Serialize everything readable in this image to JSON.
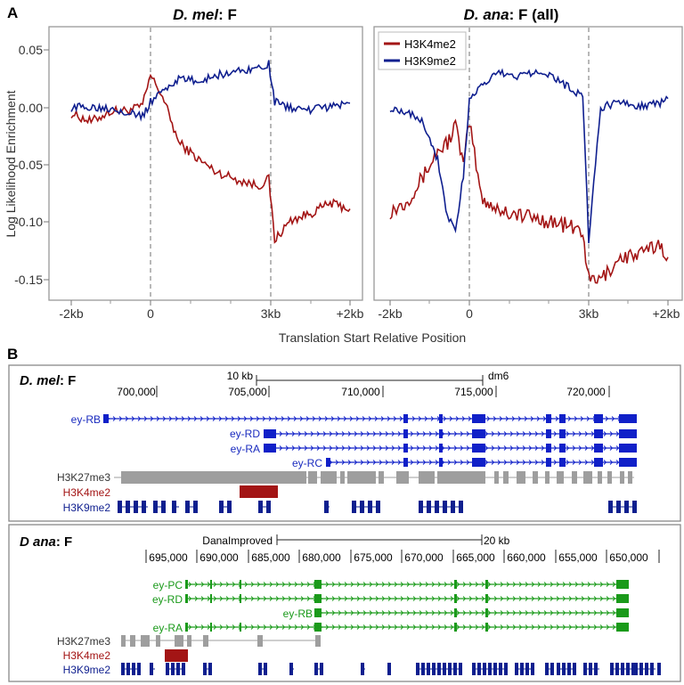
{
  "panel_a": {
    "label": "A",
    "left_title_italic": "D. mel",
    "left_title_rest": ": F",
    "right_title_italic": "D. ana",
    "right_title_rest": ": F (all)",
    "ylabel": "Log Likelihood Enrichment",
    "xlabel": "Translation Start Relative Position"
  },
  "panel_b": {
    "label": "B",
    "top": {
      "title_italic": "D. mel",
      "title_rest": ": F",
      "scale_label": "10 kb",
      "assembly": "dm6",
      "coords": [
        "700,000",
        "705,000",
        "710,000",
        "715,000",
        "720,000"
      ],
      "transcripts": [
        "ey-RB",
        "ey-RD",
        "ey-RA",
        "ey-RC"
      ],
      "tracks": [
        "H3K27me3",
        "H3K4me2",
        "H3K9me2"
      ]
    },
    "bottom": {
      "title": "D ana",
      "title_rest": ": F",
      "assembly": "DanaImproved",
      "scale_label": "20 kb",
      "coords": [
        "695,000",
        "690,000",
        "685,000",
        "680,000",
        "675,000",
        "670,000",
        "665,000",
        "660,000",
        "655,000",
        "650,000"
      ],
      "transcripts": [
        "ey-PC",
        "ey-RD",
        "ey-RB",
        "ey-RA"
      ],
      "tracks": [
        "H3K27me3",
        "H3K4me2",
        "H3K9me2"
      ]
    }
  },
  "colors": {
    "h3k4me2": "#a31515",
    "h3k9me2": "#0f1f8f",
    "h3k27me3": "#9e9e9e",
    "dmel_gene": "#1020c8",
    "dana_gene": "#1a9a1a",
    "frame": "#999999"
  },
  "chart_data": [
    {
      "type": "line",
      "title": "D. mel: F",
      "xlabel": "Translation Start Relative Position",
      "ylabel": "Log Likelihood Enrichment",
      "x_ticks": [
        "-2kb",
        "0",
        "3kb",
        "+2kb"
      ],
      "y_ticks": [
        0.05,
        0.0,
        -0.05,
        -0.1,
        -0.15
      ],
      "ylim": [
        -0.165,
        0.068
      ],
      "grid": false,
      "legend": "none",
      "vlines_at": [
        "0",
        "3kb"
      ],
      "x_positions": [
        -2,
        -1.5,
        -1,
        -0.5,
        -0.2,
        0,
        0.3,
        0.7,
        1.2,
        1.6,
        2.2,
        2.7,
        2.95,
        3.1,
        3.5,
        4,
        4.5,
        5
      ],
      "series": [
        {
          "name": "H3K4me2",
          "values": [
            -0.005,
            -0.012,
            -0.003,
            -0.002,
            0.002,
            0.028,
            0.01,
            -0.03,
            -0.045,
            -0.055,
            -0.063,
            -0.068,
            -0.062,
            -0.115,
            -0.098,
            -0.092,
            -0.083,
            -0.088
          ]
        },
        {
          "name": "H3K9me2",
          "values": [
            0.0,
            0.001,
            0.0,
            -0.004,
            -0.008,
            0.005,
            0.015,
            0.025,
            0.023,
            0.028,
            0.032,
            0.035,
            0.038,
            0.005,
            0.0,
            -0.002,
            0.001,
            0.004
          ]
        }
      ]
    },
    {
      "type": "line",
      "title": "D. ana: F (all)",
      "xlabel": "Translation Start Relative Position",
      "ylabel": "Log Likelihood Enrichment",
      "x_ticks": [
        "-2kb",
        "0",
        "3kb",
        "+2kb"
      ],
      "y_ticks": [
        0.05,
        0.0,
        -0.05,
        -0.1,
        -0.15
      ],
      "ylim": [
        -0.165,
        0.068
      ],
      "grid": false,
      "legend": "top-left",
      "legend_entries": [
        "H3K4me2",
        "H3K9me2"
      ],
      "vlines_at": [
        "0",
        "3kb"
      ],
      "x_positions": [
        -2,
        -1.6,
        -1.2,
        -0.8,
        -0.55,
        -0.35,
        -0.15,
        0,
        0.3,
        0.7,
        1.2,
        1.8,
        2.4,
        2.85,
        3.0,
        3.3,
        3.8,
        4.3,
        4.8,
        5
      ],
      "series": [
        {
          "name": "H3K4me2",
          "values": [
            -0.09,
            -0.082,
            -0.062,
            -0.038,
            -0.03,
            -0.015,
            -0.05,
            -0.012,
            -0.078,
            -0.088,
            -0.093,
            -0.097,
            -0.102,
            -0.108,
            -0.15,
            -0.15,
            -0.13,
            -0.128,
            -0.118,
            -0.13
          ]
        },
        {
          "name": "H3K9me2",
          "values": [
            0.0,
            -0.003,
            -0.01,
            -0.045,
            -0.095,
            -0.105,
            -0.06,
            0.005,
            0.02,
            0.03,
            0.028,
            0.033,
            0.02,
            0.01,
            -0.115,
            0.0,
            0.005,
            0.002,
            0.004,
            0.008
          ]
        }
      ]
    }
  ]
}
